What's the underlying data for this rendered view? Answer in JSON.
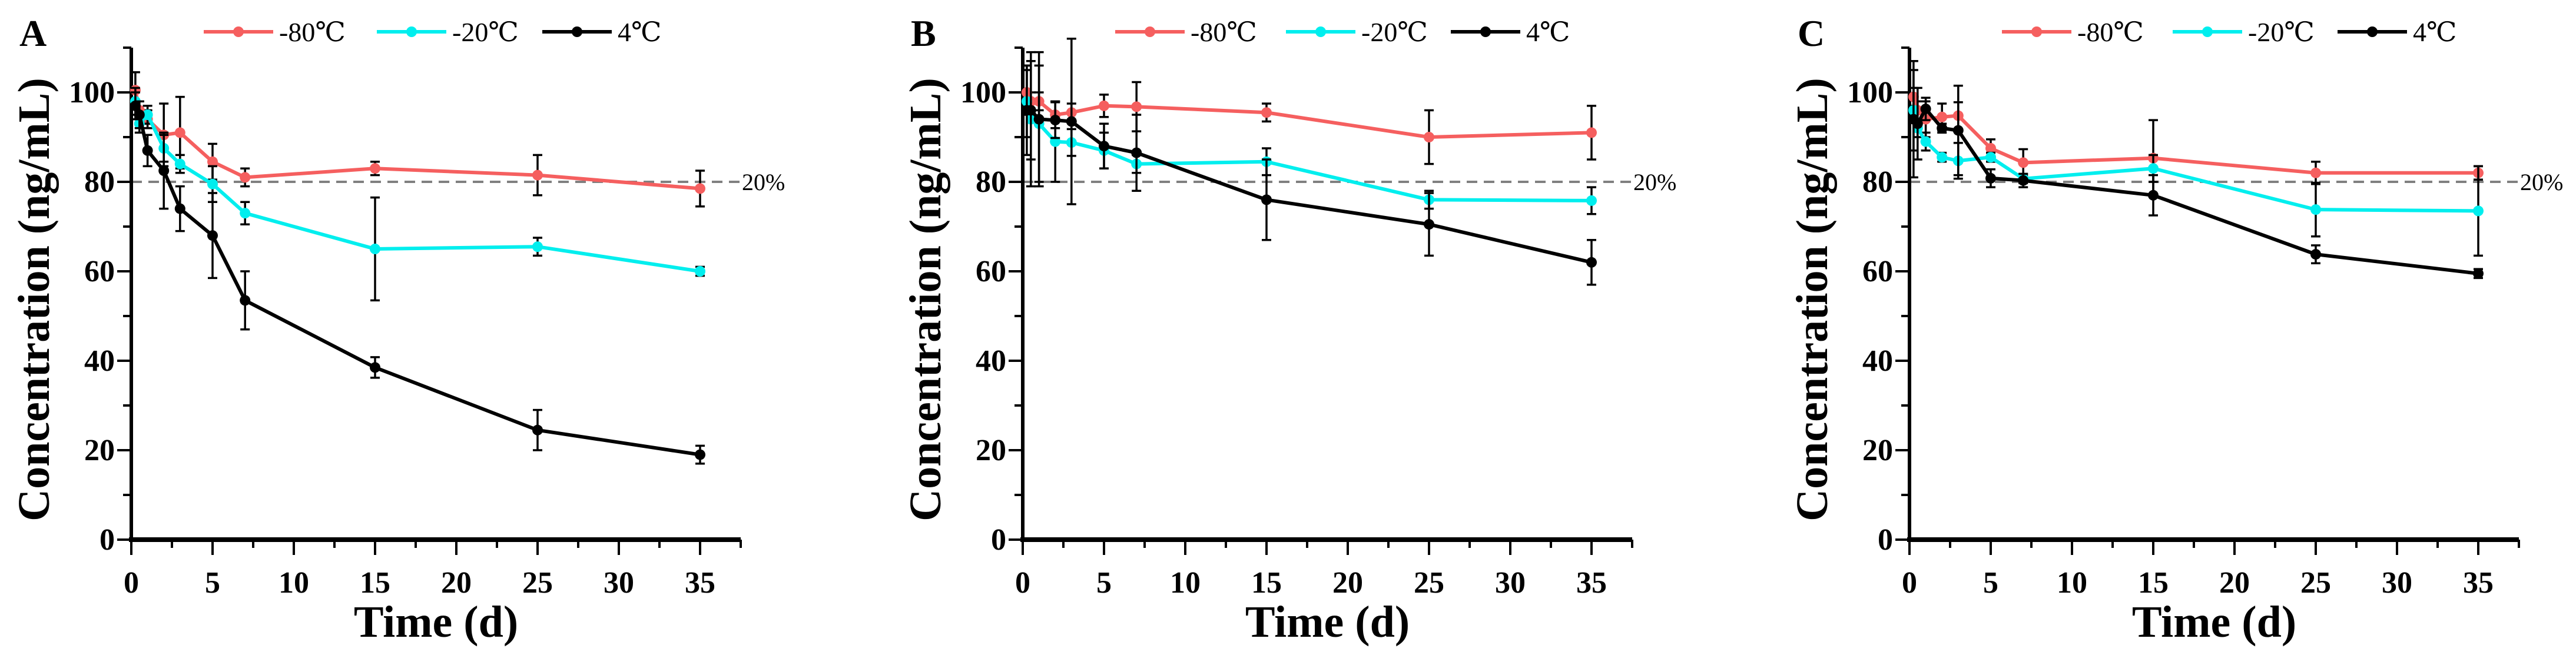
{
  "chart_data": [
    {
      "type": "line",
      "panel_label": "A",
      "xlabel": "Time (d)",
      "ylabel": "Concentration (ng/mL)",
      "xlim": [
        0,
        37.5
      ],
      "ylim": [
        0,
        110
      ],
      "xticks": [
        0,
        5,
        10,
        15,
        20,
        25,
        30,
        35
      ],
      "yticks": [
        0,
        20,
        40,
        60,
        80,
        100
      ],
      "legend_position": "top",
      "reference_line": {
        "y": 80,
        "label": "20%",
        "style": "dashed",
        "color": "#808080"
      },
      "x": [
        0.25,
        0.5,
        1,
        2,
        3,
        5,
        7,
        15,
        25,
        35
      ],
      "series": [
        {
          "name": "-80℃",
          "color": "#f55f5f",
          "values": [
            100.5,
            96,
            94,
            90.5,
            91,
            84.5,
            81,
            83,
            81.5,
            78.5
          ],
          "errors": [
            4,
            2,
            2,
            7,
            8,
            4,
            2,
            1.5,
            4.5,
            4
          ]
        },
        {
          "name": "-20℃",
          "color": "#00eeee",
          "values": [
            98,
            93,
            95,
            87.5,
            84,
            79.5,
            73,
            65,
            65.5,
            60
          ],
          "errors": [
            3,
            2,
            2,
            3,
            2,
            4,
            2.5,
            11.5,
            2,
            1
          ]
        },
        {
          "name": "4℃",
          "color": "#000000",
          "values": [
            97,
            95,
            87,
            82.5,
            74,
            68,
            53.5,
            38.5,
            24.5,
            19
          ],
          "errors": [
            3,
            3,
            3.5,
            8.5,
            5,
            9.5,
            6.5,
            2.3,
            4.5,
            2
          ]
        }
      ]
    },
    {
      "type": "line",
      "panel_label": "B",
      "xlabel": "Time (d)",
      "ylabel": "Concentration (ng/mL)",
      "xlim": [
        0,
        37.5
      ],
      "ylim": [
        0,
        110
      ],
      "xticks": [
        0,
        5,
        10,
        15,
        20,
        25,
        30,
        35
      ],
      "yticks": [
        0,
        20,
        40,
        60,
        80,
        100
      ],
      "legend_position": "top",
      "reference_line": {
        "y": 80,
        "label": "20%",
        "style": "dashed",
        "color": "#808080"
      },
      "x": [
        0.25,
        0.5,
        1,
        2,
        3,
        5,
        7,
        15,
        25,
        35
      ],
      "series": [
        {
          "name": "-80℃",
          "color": "#f55f5f",
          "values": [
            100,
            98,
            98,
            95,
            95.5,
            97,
            96.8,
            95.5,
            90,
            91
          ],
          "errors": [
            5,
            2,
            2,
            3,
            2,
            2.5,
            5.5,
            2,
            6,
            6
          ]
        },
        {
          "name": "-20℃",
          "color": "#00eeee",
          "values": [
            98,
            94,
            93,
            89,
            88.8,
            87,
            84,
            84.5,
            76,
            75.8
          ],
          "errors": [
            8,
            15,
            13,
            9,
            3,
            4,
            2,
            3,
            2,
            3
          ]
        },
        {
          "name": "4℃",
          "color": "#000000",
          "values": [
            96,
            96,
            94,
            93.8,
            93.5,
            88,
            86.5,
            76,
            70.5,
            62
          ],
          "errors": [
            10,
            11,
            15,
            4,
            18.5,
            5,
            8.5,
            9,
            7,
            5
          ]
        }
      ]
    },
    {
      "type": "line",
      "panel_label": "C",
      "xlabel": "Time (d)",
      "ylabel": "Concentration (ng/mL)",
      "xlim": [
        0,
        37.5
      ],
      "ylim": [
        0,
        110
      ],
      "xticks": [
        0,
        5,
        10,
        15,
        20,
        25,
        30,
        35
      ],
      "yticks": [
        0,
        20,
        40,
        60,
        80,
        100
      ],
      "legend_position": "top",
      "reference_line": {
        "y": 80,
        "label": "20%",
        "style": "dashed",
        "color": "#808080"
      },
      "x": [
        0.25,
        0.5,
        1,
        2,
        3,
        5,
        7,
        15,
        25,
        35
      ],
      "series": [
        {
          "name": "-80℃",
          "color": "#f55f5f",
          "values": [
            99,
            96,
            94,
            94.5,
            94.8,
            87.5,
            84.3,
            85.3,
            82,
            82
          ],
          "errors": [
            2,
            2,
            4,
            3,
            3,
            2,
            3,
            8.5,
            2.5,
            1.5
          ]
        },
        {
          "name": "-20℃",
          "color": "#00eeee",
          "values": [
            96,
            92,
            89,
            85.5,
            84.7,
            85.5,
            80.7,
            83,
            73.8,
            73.5
          ],
          "errors": [
            9,
            2,
            2,
            1,
            4,
            1,
            1,
            3,
            6,
            10
          ]
        },
        {
          "name": "4℃",
          "color": "#000000",
          "values": [
            94,
            93,
            96.3,
            92,
            91.5,
            80.8,
            80.3,
            77,
            63.8,
            59.5
          ],
          "errors": [
            13,
            8,
            2.5,
            1,
            10,
            2,
            1.5,
            4.5,
            2,
            1
          ]
        }
      ]
    }
  ]
}
